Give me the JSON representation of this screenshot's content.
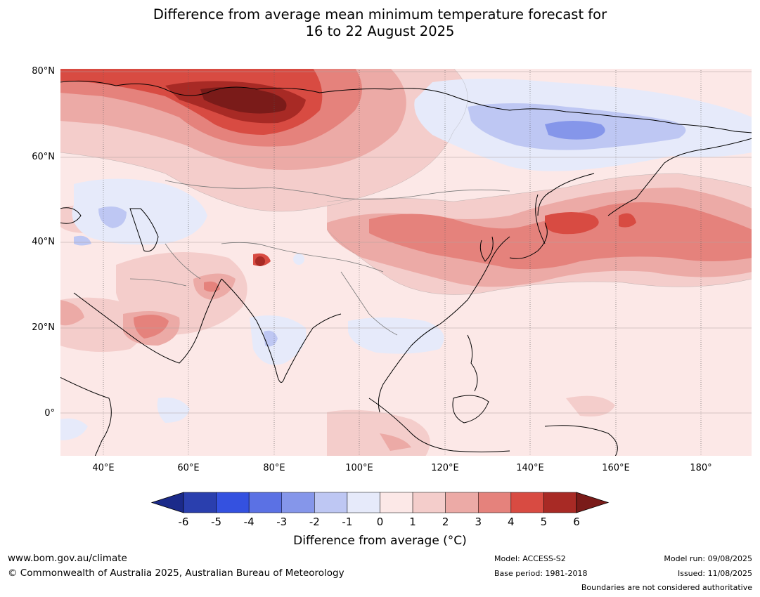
{
  "title": {
    "line1": "Difference from average mean minimum temperature forecast for",
    "line2": "16 to 22 August 2025"
  },
  "map": {
    "lat_labels": [
      "80°N",
      "60°N",
      "40°N",
      "20°N",
      "0°"
    ],
    "lon_labels": [
      "40°E",
      "60°E",
      "80°E",
      "100°E",
      "120°E",
      "140°E",
      "160°E",
      "180°"
    ]
  },
  "colorbar": {
    "ticks": [
      "-6",
      "-5",
      "-4",
      "-3",
      "-2",
      "-1",
      "0",
      "1",
      "2",
      "3",
      "4",
      "5",
      "6"
    ],
    "colors": [
      "#1b2a8a",
      "#2a3fae",
      "#3451e0",
      "#5b71e4",
      "#8596ea",
      "#bec7f3",
      "#e6eafa",
      "#fce8e7",
      "#f4cdcb",
      "#ecaaa6",
      "#e5827c",
      "#d84b42",
      "#a82a25",
      "#7a1b19"
    ],
    "label": "Difference from average (°C)"
  },
  "footer": {
    "website": "www.bom.gov.au/climate",
    "copyright": "© Commonwealth of Australia 2025, Australian Bureau of Meteorology",
    "model": "Model: ACCESS-S2",
    "base_period": "Base period: 1981-2018",
    "model_run": "Model run: 09/08/2025",
    "issued": "Issued: 11/08/2025",
    "boundaries": "Boundaries are not considered authoritative"
  }
}
